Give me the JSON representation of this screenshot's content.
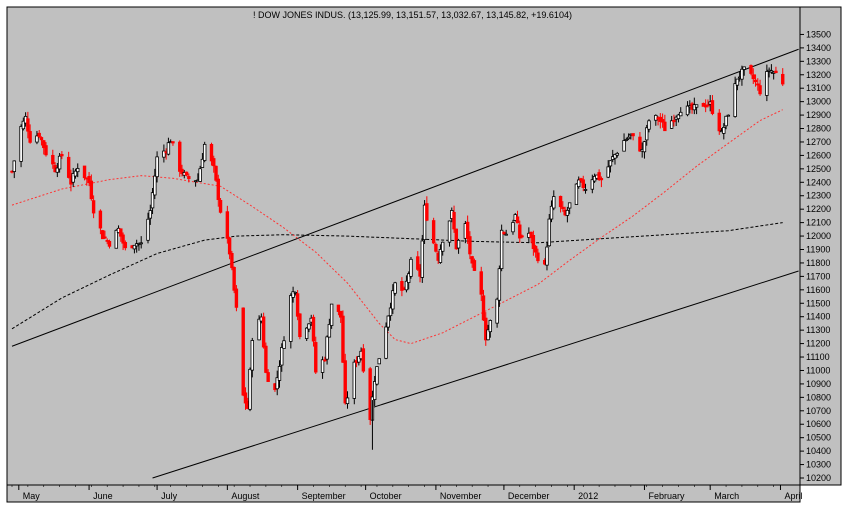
{
  "chart_data": {
    "type": "candlestick",
    "title": "! DOW JONES INDUS. (13,125.99, 13,151.57, 13,032.67, 13,145.82, +19.6104)",
    "xlabel": "",
    "ylabel": "",
    "ylim": [
      10200,
      13600
    ],
    "yticks": [
      10200,
      10300,
      10400,
      10500,
      10600,
      10700,
      10800,
      10900,
      11000,
      11100,
      11200,
      11300,
      11400,
      11500,
      11600,
      11700,
      11800,
      11900,
      12000,
      12100,
      12200,
      12300,
      12400,
      12500,
      12600,
      12700,
      12800,
      12900,
      13000,
      13100,
      13200,
      13300,
      13400,
      13500
    ],
    "x_start_date": "2011-04-28",
    "x_end_date": "2012-04-03",
    "month_labels": [
      {
        "label": "May",
        "date": "2011-05-01"
      },
      {
        "label": "June",
        "date": "2011-06-01"
      },
      {
        "label": "July",
        "date": "2011-07-01"
      },
      {
        "label": "August",
        "date": "2011-08-01"
      },
      {
        "label": "September",
        "date": "2011-09-01"
      },
      {
        "label": "October",
        "date": "2011-10-01"
      },
      {
        "label": "November",
        "date": "2011-11-01"
      },
      {
        "label": "December",
        "date": "2011-12-01"
      },
      {
        "label": "2012",
        "date": "2012-01-01"
      },
      {
        "label": "February",
        "date": "2012-02-01"
      },
      {
        "label": "March",
        "date": "2012-03-01"
      },
      {
        "label": "April",
        "date": "2012-04-01"
      }
    ],
    "closes": [
      {
        "date": "2011-04-28",
        "close": 12480
      },
      {
        "date": "2011-05-02",
        "close": 12810
      },
      {
        "date": "2011-05-04",
        "close": 12880
      },
      {
        "date": "2011-05-06",
        "close": 12720
      },
      {
        "date": "2011-05-10",
        "close": 12760
      },
      {
        "date": "2011-05-13",
        "close": 12620
      },
      {
        "date": "2011-05-17",
        "close": 12500
      },
      {
        "date": "2011-05-20",
        "close": 12600
      },
      {
        "date": "2011-05-24",
        "close": 12400
      },
      {
        "date": "2011-05-27",
        "close": 12520
      },
      {
        "date": "2011-06-01",
        "close": 12400
      },
      {
        "date": "2011-06-03",
        "close": 12200
      },
      {
        "date": "2011-06-07",
        "close": 12000
      },
      {
        "date": "2011-06-10",
        "close": 11950
      },
      {
        "date": "2011-06-14",
        "close": 12050
      },
      {
        "date": "2011-06-17",
        "close": 11900
      },
      {
        "date": "2011-06-21",
        "close": 11950
      },
      {
        "date": "2011-06-24",
        "close": 11940
      },
      {
        "date": "2011-06-28",
        "close": 12190
      },
      {
        "date": "2011-07-01",
        "close": 12580
      },
      {
        "date": "2011-07-05",
        "close": 12650
      },
      {
        "date": "2011-07-07",
        "close": 12720
      },
      {
        "date": "2011-07-11",
        "close": 12500
      },
      {
        "date": "2011-07-14",
        "close": 12430
      },
      {
        "date": "2011-07-19",
        "close": 12420
      },
      {
        "date": "2011-07-22",
        "close": 12680
      },
      {
        "date": "2011-07-26",
        "close": 12500
      },
      {
        "date": "2011-07-29",
        "close": 12190
      },
      {
        "date": "2011-08-02",
        "close": 11880
      },
      {
        "date": "2011-08-05",
        "close": 11450
      },
      {
        "date": "2011-08-08",
        "close": 10810
      },
      {
        "date": "2011-08-10",
        "close": 10720
      },
      {
        "date": "2011-08-12",
        "close": 11250
      },
      {
        "date": "2011-08-16",
        "close": 11400
      },
      {
        "date": "2011-08-18",
        "close": 10980
      },
      {
        "date": "2011-08-22",
        "close": 10850
      },
      {
        "date": "2011-08-25",
        "close": 11150
      },
      {
        "date": "2011-08-29",
        "close": 11550
      },
      {
        "date": "2011-08-31",
        "close": 11610
      },
      {
        "date": "2011-09-02",
        "close": 11250
      },
      {
        "date": "2011-09-07",
        "close": 11400
      },
      {
        "date": "2011-09-09",
        "close": 10990
      },
      {
        "date": "2011-09-13",
        "close": 11100
      },
      {
        "date": "2011-09-16",
        "close": 11500
      },
      {
        "date": "2011-09-20",
        "close": 11400
      },
      {
        "date": "2011-09-22",
        "close": 10730
      },
      {
        "date": "2011-09-26",
        "close": 11040
      },
      {
        "date": "2011-09-29",
        "close": 11150
      },
      {
        "date": "2011-10-03",
        "close": 10650
      },
      {
        "date": "2011-10-05",
        "close": 10940
      },
      {
        "date": "2011-10-07",
        "close": 11100
      },
      {
        "date": "2011-10-11",
        "close": 11420
      },
      {
        "date": "2011-10-14",
        "close": 11640
      },
      {
        "date": "2011-10-18",
        "close": 11580
      },
      {
        "date": "2011-10-21",
        "close": 11800
      },
      {
        "date": "2011-10-25",
        "close": 11710
      },
      {
        "date": "2011-10-27",
        "close": 12210
      },
      {
        "date": "2011-10-31",
        "close": 11950
      },
      {
        "date": "2011-11-02",
        "close": 11840
      },
      {
        "date": "2011-11-04",
        "close": 11980
      },
      {
        "date": "2011-11-08",
        "close": 12170
      },
      {
        "date": "2011-11-10",
        "close": 11920
      },
      {
        "date": "2011-11-14",
        "close": 12080
      },
      {
        "date": "2011-11-17",
        "close": 11770
      },
      {
        "date": "2011-11-21",
        "close": 11550
      },
      {
        "date": "2011-11-23",
        "close": 11250
      },
      {
        "date": "2011-11-28",
        "close": 11520
      },
      {
        "date": "2011-11-30",
        "close": 12040
      },
      {
        "date": "2011-12-02",
        "close": 12020
      },
      {
        "date": "2011-12-06",
        "close": 12150
      },
      {
        "date": "2011-12-08",
        "close": 11990
      },
      {
        "date": "2011-12-12",
        "close": 12020
      },
      {
        "date": "2011-12-15",
        "close": 11870
      },
      {
        "date": "2011-12-19",
        "close": 11770
      },
      {
        "date": "2011-12-21",
        "close": 12110
      },
      {
        "date": "2011-12-23",
        "close": 12290
      },
      {
        "date": "2011-12-28",
        "close": 12150
      },
      {
        "date": "2012-01-03",
        "close": 12400
      },
      {
        "date": "2012-01-06",
        "close": 12360
      },
      {
        "date": "2012-01-10",
        "close": 12460
      },
      {
        "date": "2012-01-13",
        "close": 12420
      },
      {
        "date": "2012-01-18",
        "close": 12580
      },
      {
        "date": "2012-01-23",
        "close": 12710
      },
      {
        "date": "2012-01-26",
        "close": 12750
      },
      {
        "date": "2012-01-31",
        "close": 12630
      },
      {
        "date": "2012-02-03",
        "close": 12860
      },
      {
        "date": "2012-02-07",
        "close": 12880
      },
      {
        "date": "2012-02-10",
        "close": 12800
      },
      {
        "date": "2012-02-14",
        "close": 12880
      },
      {
        "date": "2012-02-17",
        "close": 12950
      },
      {
        "date": "2012-02-22",
        "close": 12940
      },
      {
        "date": "2012-02-27",
        "close": 12980
      },
      {
        "date": "2012-03-01",
        "close": 12980
      },
      {
        "date": "2012-03-06",
        "close": 12760
      },
      {
        "date": "2012-03-09",
        "close": 12920
      },
      {
        "date": "2012-03-13",
        "close": 13180
      },
      {
        "date": "2012-03-16",
        "close": 13230
      },
      {
        "date": "2012-03-20",
        "close": 13170
      },
      {
        "date": "2012-03-23",
        "close": 13080
      },
      {
        "date": "2012-03-27",
        "close": 13240
      },
      {
        "date": "2012-03-30",
        "close": 13210
      },
      {
        "date": "2012-04-02",
        "close": 13145
      }
    ],
    "ma_short_red": [
      {
        "date": "2011-04-28",
        "value": 12230
      },
      {
        "date": "2011-05-20",
        "value": 12350
      },
      {
        "date": "2011-06-10",
        "value": 12420
      },
      {
        "date": "2011-06-24",
        "value": 12450
      },
      {
        "date": "2011-07-08",
        "value": 12430
      },
      {
        "date": "2011-07-29",
        "value": 12370
      },
      {
        "date": "2011-08-12",
        "value": 12220
      },
      {
        "date": "2011-08-26",
        "value": 12060
      },
      {
        "date": "2011-09-09",
        "value": 11880
      },
      {
        "date": "2011-09-23",
        "value": 11650
      },
      {
        "date": "2011-10-07",
        "value": 11350
      },
      {
        "date": "2011-10-14",
        "value": 11230
      },
      {
        "date": "2011-10-21",
        "value": 11200
      },
      {
        "date": "2011-11-04",
        "value": 11280
      },
      {
        "date": "2011-11-18",
        "value": 11400
      },
      {
        "date": "2011-12-02",
        "value": 11520
      },
      {
        "date": "2011-12-16",
        "value": 11640
      },
      {
        "date": "2011-12-30",
        "value": 11820
      },
      {
        "date": "2012-01-13",
        "value": 11990
      },
      {
        "date": "2012-01-27",
        "value": 12150
      },
      {
        "date": "2012-02-10",
        "value": 12330
      },
      {
        "date": "2012-02-24",
        "value": 12520
      },
      {
        "date": "2012-03-09",
        "value": 12690
      },
      {
        "date": "2012-03-23",
        "value": 12860
      },
      {
        "date": "2012-04-02",
        "value": 12940
      }
    ],
    "ma_long_black_dashed": [
      {
        "date": "2011-04-28",
        "value": 11310
      },
      {
        "date": "2011-05-20",
        "value": 11540
      },
      {
        "date": "2011-06-10",
        "value": 11710
      },
      {
        "date": "2011-07-01",
        "value": 11870
      },
      {
        "date": "2011-07-22",
        "value": 11970
      },
      {
        "date": "2011-08-05",
        "value": 12000
      },
      {
        "date": "2011-08-26",
        "value": 12010
      },
      {
        "date": "2011-09-23",
        "value": 12000
      },
      {
        "date": "2011-10-21",
        "value": 11980
      },
      {
        "date": "2011-11-18",
        "value": 11960
      },
      {
        "date": "2011-12-16",
        "value": 11950
      },
      {
        "date": "2012-01-13",
        "value": 11980
      },
      {
        "date": "2012-02-10",
        "value": 12010
      },
      {
        "date": "2012-03-09",
        "value": 12040
      },
      {
        "date": "2012-04-02",
        "value": 12100
      }
    ],
    "trendlines": [
      {
        "name": "upper",
        "from": {
          "date": "2011-04-28",
          "value": 11180
        },
        "to": {
          "date": "2012-04-09",
          "value": 13390
        }
      },
      {
        "name": "lower",
        "from": {
          "date": "2011-06-29",
          "value": 10200
        },
        "to": {
          "date": "2012-04-09",
          "value": 11740
        }
      }
    ],
    "colors": {
      "up": "#000000",
      "down": "#ff0000",
      "ma_short": "#ff3333",
      "ma_long": "#000000",
      "background": "#c0c0c0"
    },
    "grid": false
  }
}
